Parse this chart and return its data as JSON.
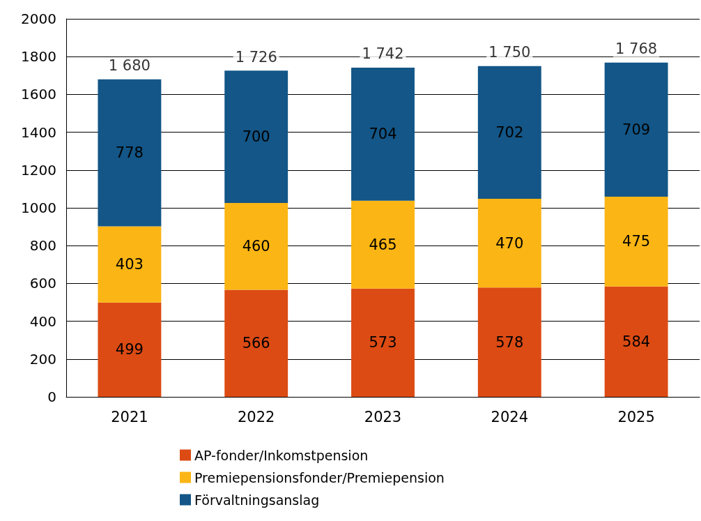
{
  "chart_data": {
    "type": "bar",
    "stacked": true,
    "categories": [
      "2021",
      "2022",
      "2023",
      "2024",
      "2025"
    ],
    "series": [
      {
        "name": "AP-fonder/Inkomstpension",
        "color": "#dc4b14",
        "values": [
          499,
          566,
          573,
          578,
          584
        ]
      },
      {
        "name": "Premiepensionsfonder/Premiepension",
        "color": "#fbb514",
        "values": [
          403,
          460,
          465,
          470,
          475
        ]
      },
      {
        "name": "Förvaltningsanslag",
        "color": "#135687",
        "values": [
          778,
          700,
          704,
          702,
          709
        ]
      }
    ],
    "totals": [
      "1 680",
      "1 726",
      "1 742",
      "1 750",
      "1 768"
    ],
    "data_labels": true,
    "ylim": [
      0,
      2000
    ],
    "yticks": [
      0,
      200,
      400,
      600,
      800,
      1000,
      1200,
      1400,
      1600,
      1800,
      2000
    ],
    "grid": "y",
    "legend": "bottom"
  }
}
